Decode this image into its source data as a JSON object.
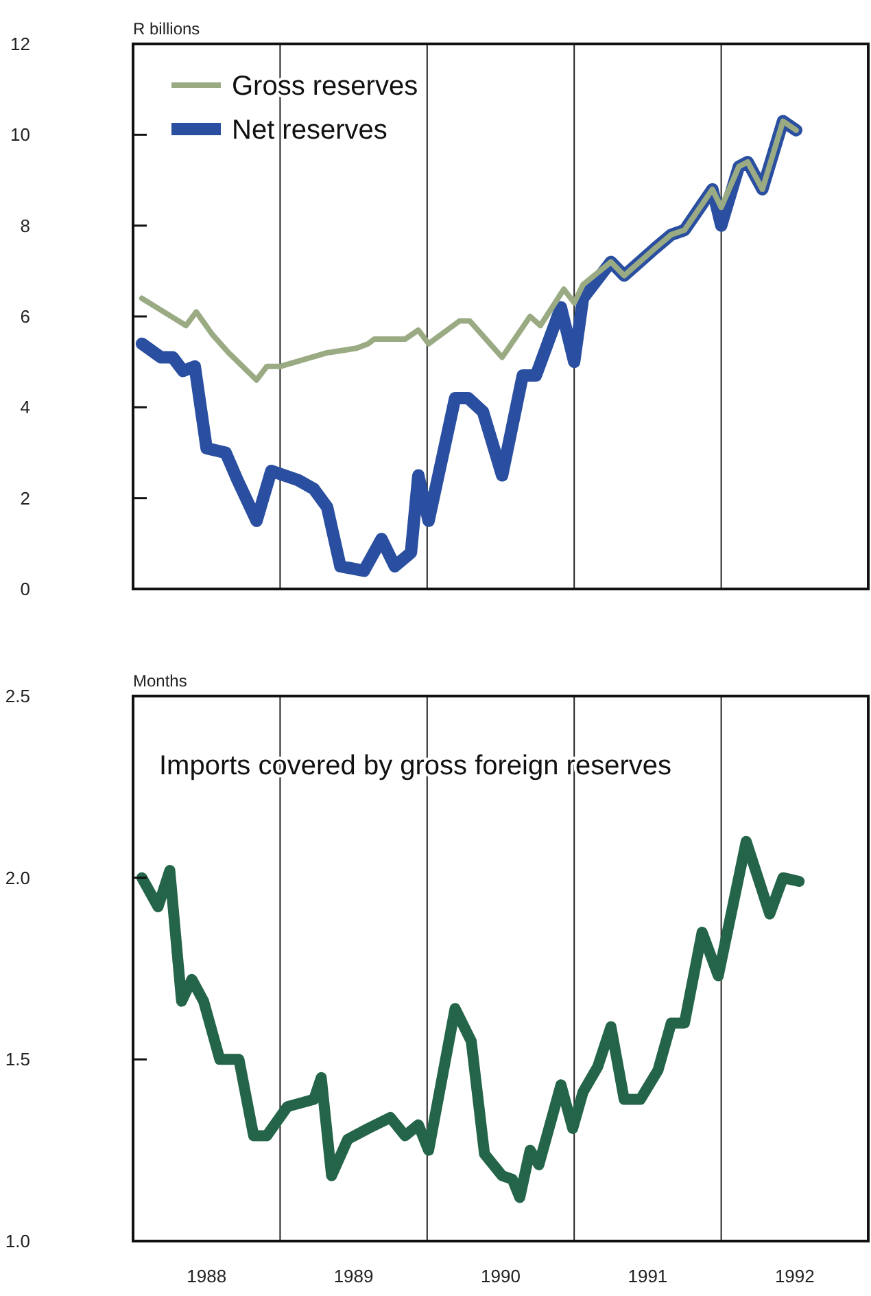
{
  "chart_data": [
    {
      "type": "line",
      "ylabel": "R billions",
      "xlim": [
        1988,
        1993
      ],
      "ylim": [
        0,
        12
      ],
      "yticks": [
        0,
        2,
        4,
        6,
        8,
        10,
        12
      ],
      "tick_labels": "y",
      "legend": "top left",
      "ref_lines": [
        {
          "axis": "x",
          "value": 1989
        },
        {
          "axis": "x",
          "value": 1990
        },
        {
          "axis": "x",
          "value": 1991
        },
        {
          "axis": "x",
          "value": 1992
        }
      ],
      "series": [
        {
          "name": "Net reserves",
          "color": "#2a4fa0",
          "x": [
            1988.06,
            1988.19,
            1988.27,
            1988.34,
            1988.42,
            1988.5,
            1988.63,
            1988.71,
            1988.84,
            1988.94,
            1989.12,
            1989.23,
            1989.32,
            1989.41,
            1989.57,
            1989.69,
            1989.78,
            1989.89,
            1989.94,
            1990.01,
            1990.19,
            1990.28,
            1990.38,
            1990.51,
            1990.65,
            1990.74,
            1990.91,
            1991.0,
            1991.06,
            1991.25,
            1991.34,
            1991.55,
            1991.66,
            1991.75,
            1991.94,
            1992.0,
            1992.12,
            1992.18,
            1992.28,
            1992.42,
            1992.51
          ],
          "values": [
            5.4,
            5.1,
            5.1,
            4.8,
            4.9,
            3.1,
            3.0,
            2.4,
            1.5,
            2.6,
            2.4,
            2.2,
            1.8,
            0.5,
            0.4,
            1.1,
            0.5,
            0.8,
            2.5,
            1.5,
            4.2,
            4.2,
            3.9,
            2.5,
            4.7,
            4.7,
            6.2,
            5.0,
            6.4,
            7.2,
            6.9,
            7.5,
            7.8,
            7.9,
            8.8,
            8.0,
            9.3,
            9.4,
            8.8,
            10.3,
            10.1
          ]
        },
        {
          "name": "Gross reserves",
          "color": "#9aab84",
          "x": [
            1988.06,
            1988.36,
            1988.43,
            1988.54,
            1988.65,
            1988.84,
            1988.91,
            1989.0,
            1989.32,
            1989.52,
            1989.6,
            1989.64,
            1989.85,
            1989.94,
            1990.01,
            1990.22,
            1990.29,
            1990.51,
            1990.7,
            1990.77,
            1990.93,
            1991.0,
            1991.06,
            1991.25,
            1991.34,
            1991.55,
            1991.66,
            1991.75,
            1991.94,
            1992.0,
            1992.12,
            1992.18,
            1992.28,
            1992.42,
            1992.51
          ],
          "values": [
            6.4,
            5.8,
            6.1,
            5.6,
            5.2,
            4.6,
            4.9,
            4.9,
            5.2,
            5.3,
            5.4,
            5.5,
            5.5,
            5.7,
            5.4,
            5.9,
            5.9,
            5.1,
            6.0,
            5.8,
            6.6,
            6.3,
            6.7,
            7.2,
            6.9,
            7.5,
            7.8,
            7.9,
            8.8,
            8.4,
            9.3,
            9.4,
            8.8,
            10.3,
            10.1
          ]
        }
      ]
    },
    {
      "type": "line",
      "ylabel": "Months",
      "annotations": [
        "Imports covered by gross foreign reserves"
      ],
      "xlim": [
        1988,
        1993
      ],
      "ylim": [
        1,
        2.5
      ],
      "yticks": [
        {
          "value": 1,
          "label": "1.0"
        },
        {
          "value": 1.5,
          "label": "1.5"
        },
        {
          "value": 2,
          "label": "2.0"
        },
        2.5
      ],
      "xticks": [
        {
          "value": 1988.5,
          "label": "1988"
        },
        {
          "value": 1989.5,
          "label": "1989"
        },
        {
          "value": 1990.5,
          "label": "1990"
        },
        {
          "value": 1991.5,
          "label": "1991"
        },
        {
          "value": 1992.5,
          "label": "1992"
        }
      ],
      "ref_lines": [
        {
          "axis": "x",
          "value": 1989
        },
        {
          "axis": "x",
          "value": 1990
        },
        {
          "axis": "x",
          "value": 1991
        },
        {
          "axis": "x",
          "value": 1992
        }
      ],
      "series": [
        {
          "color": "#24654a",
          "x": [
            1988.06,
            1988.17,
            1988.25,
            1988.33,
            1988.4,
            1988.48,
            1988.59,
            1988.72,
            1988.82,
            1988.91,
            1989.05,
            1989.14,
            1989.23,
            1989.28,
            1989.35,
            1989.46,
            1989.6,
            1989.75,
            1989.85,
            1989.94,
            1990.01,
            1990.19,
            1990.3,
            1990.39,
            1990.51,
            1990.58,
            1990.63,
            1990.7,
            1990.76,
            1990.91,
            1990.99,
            1991.06,
            1991.16,
            1991.25,
            1991.34,
            1991.45,
            1991.57,
            1991.66,
            1991.75,
            1991.87,
            1991.98,
            1992.17,
            1992.33,
            1992.42,
            1992.53
          ],
          "values": [
            2.0,
            1.92,
            2.02,
            1.66,
            1.72,
            1.66,
            1.5,
            1.5,
            1.29,
            1.29,
            1.37,
            1.38,
            1.39,
            1.45,
            1.18,
            1.28,
            1.31,
            1.34,
            1.29,
            1.32,
            1.25,
            1.64,
            1.55,
            1.24,
            1.18,
            1.17,
            1.12,
            1.25,
            1.21,
            1.43,
            1.31,
            1.41,
            1.48,
            1.59,
            1.39,
            1.39,
            1.47,
            1.6,
            1.6,
            1.85,
            1.73,
            2.1,
            1.9,
            2.0,
            1.99
          ]
        }
      ]
    }
  ]
}
